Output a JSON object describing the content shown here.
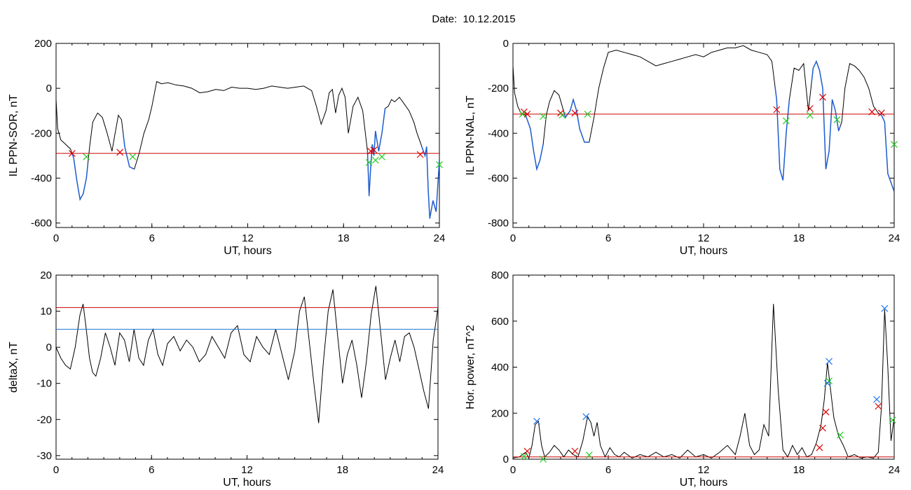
{
  "title": "Date:  10.12.2015",
  "colors": {
    "data": "#000000",
    "threshold_red": "#cc0000",
    "threshold_blue": "#1f77d0",
    "segment_blue": "#1f5fd0",
    "marker_red": "#dd0000",
    "marker_green": "#22cc22",
    "marker_blue": "#2277ee"
  },
  "chart_data": [
    {
      "id": "sor",
      "type": "line",
      "xlabel": "UT, hours",
      "ylabel": "IL PPN-SOR, nT",
      "xlim": [
        0,
        24
      ],
      "ylim": [
        -620,
        200
      ],
      "xticks": [
        0,
        6,
        12,
        18,
        24
      ],
      "xtick_labels": [
        "0",
        "6",
        "12",
        "18",
        "24"
      ],
      "yticks": [
        -600,
        -400,
        -200,
        0,
        200
      ],
      "ytick_labels": [
        "-600",
        "-400",
        "-200",
        "0",
        "200"
      ],
      "threshold_red": -290,
      "series": [
        {
          "x": [
            0,
            0.1,
            0.3,
            0.6,
            0.9,
            1.1,
            1.3,
            1.5,
            1.7,
            1.9,
            2.1,
            2.3,
            2.6,
            2.9,
            3.2,
            3.5,
            3.7,
            3.9,
            4.1,
            4.3,
            4.6,
            4.9,
            5.2,
            5.5,
            5.8,
            6.0,
            6.3,
            6.6,
            7.0,
            7.5,
            8.0,
            8.5,
            9.0,
            9.5,
            10.0,
            10.5,
            11.0,
            11.5,
            12.0,
            12.5,
            13.0,
            13.5,
            14.0,
            14.5,
            15.0,
            15.5,
            16.0,
            16.3,
            16.6,
            16.9,
            17.1,
            17.3,
            17.5,
            17.7,
            17.9,
            18.1,
            18.3,
            18.6,
            18.9,
            19.2,
            19.5,
            19.6,
            19.7,
            19.8,
            19.9,
            20.0,
            20.2,
            20.4,
            20.6,
            20.8,
            21.0,
            21.2,
            21.5,
            21.8,
            22.1,
            22.4,
            22.6,
            22.8,
            23.0,
            23.1,
            23.2,
            23.3,
            23.4,
            23.5,
            23.6,
            23.8,
            24.0
          ],
          "y": [
            -50,
            -180,
            -230,
            -250,
            -270,
            -310,
            -410,
            -495,
            -470,
            -400,
            -260,
            -150,
            -110,
            -130,
            -200,
            -280,
            -200,
            -120,
            -140,
            -260,
            -350,
            -360,
            -290,
            -200,
            -140,
            -80,
            30,
            20,
            25,
            15,
            10,
            0,
            -20,
            -15,
            -5,
            -10,
            5,
            0,
            0,
            -5,
            0,
            10,
            5,
            0,
            5,
            10,
            -10,
            -80,
            -160,
            -100,
            -20,
            -5,
            -110,
            -30,
            0,
            -40,
            -200,
            -80,
            -40,
            -100,
            -280,
            -480,
            -350,
            -250,
            -300,
            -190,
            -280,
            -200,
            -90,
            -80,
            -50,
            -60,
            -40,
            -70,
            -100,
            -150,
            -200,
            -240,
            -280,
            -300,
            -260,
            -450,
            -580,
            -540,
            -500,
            -550,
            -320
          ]
        }
      ],
      "segments_blue": [
        [
          1.0,
          2.0
        ],
        [
          4.2,
          4.9
        ],
        [
          19.5,
          20.6
        ],
        [
          22.9,
          24.0
        ]
      ],
      "markers_red": [
        {
          "x": 1.0,
          "y": -290
        },
        {
          "x": 4.0,
          "y": -285
        },
        {
          "x": 19.7,
          "y": -280
        },
        {
          "x": 19.9,
          "y": -275
        },
        {
          "x": 22.8,
          "y": -295
        }
      ],
      "markers_green": [
        {
          "x": 1.9,
          "y": -305
        },
        {
          "x": 4.8,
          "y": -305
        },
        {
          "x": 19.6,
          "y": -330
        },
        {
          "x": 20.0,
          "y": -320
        },
        {
          "x": 20.4,
          "y": -305
        },
        {
          "x": 24.0,
          "y": -340
        }
      ]
    },
    {
      "id": "nal",
      "type": "line",
      "xlabel": "UT, hours",
      "ylabel": "IL PPN-NAL, nT",
      "xlim": [
        0,
        24
      ],
      "ylim": [
        -820,
        0
      ],
      "xticks": [
        0,
        6,
        12,
        18,
        24
      ],
      "xtick_labels": [
        "0",
        "6",
        "12",
        "18",
        "24"
      ],
      "yticks": [
        -800,
        -600,
        -400,
        -200,
        0
      ],
      "ytick_labels": [
        "-800",
        "-600",
        "-400",
        "-200",
        "0"
      ],
      "threshold_red": -315,
      "series": [
        {
          "x": [
            0,
            0.1,
            0.3,
            0.5,
            0.8,
            1.1,
            1.3,
            1.5,
            1.7,
            1.9,
            2.1,
            2.3,
            2.6,
            2.9,
            3.1,
            3.3,
            3.6,
            3.8,
            4.0,
            4.2,
            4.5,
            4.8,
            5.1,
            5.4,
            5.7,
            6.0,
            6.5,
            7.0,
            7.5,
            8.0,
            8.5,
            9.0,
            9.5,
            10.0,
            10.5,
            11.0,
            11.5,
            12.0,
            12.5,
            13.0,
            13.5,
            14.0,
            14.5,
            15.0,
            15.5,
            16.0,
            16.3,
            16.6,
            16.8,
            17.0,
            17.2,
            17.4,
            17.7,
            18.0,
            18.3,
            18.6,
            18.9,
            19.1,
            19.3,
            19.5,
            19.7,
            19.9,
            20.1,
            20.3,
            20.5,
            20.7,
            20.9,
            21.2,
            21.5,
            21.8,
            22.1,
            22.4,
            22.7,
            23.0,
            23.2,
            23.4,
            23.6,
            23.8,
            24.0
          ],
          "y": [
            -100,
            -220,
            -280,
            -310,
            -320,
            -380,
            -480,
            -560,
            -520,
            -450,
            -320,
            -260,
            -210,
            -230,
            -280,
            -330,
            -300,
            -250,
            -300,
            -380,
            -440,
            -440,
            -330,
            -200,
            -110,
            -40,
            -30,
            -40,
            -50,
            -60,
            -80,
            -100,
            -90,
            -80,
            -70,
            -60,
            -50,
            -60,
            -40,
            -30,
            -20,
            -20,
            -10,
            -30,
            -40,
            -50,
            -80,
            -250,
            -560,
            -610,
            -400,
            -250,
            -110,
            -120,
            -90,
            -300,
            -110,
            -80,
            -120,
            -200,
            -560,
            -480,
            -250,
            -300,
            -390,
            -350,
            -200,
            -90,
            -100,
            -120,
            -150,
            -200,
            -280,
            -310,
            -320,
            -350,
            -580,
            -620,
            -660
          ]
        }
      ],
      "segments_blue": [
        [
          0.8,
          1.9
        ],
        [
          3.2,
          4.8
        ],
        [
          16.5,
          17.4
        ],
        [
          18.8,
          20.6
        ],
        [
          23.1,
          24.0
        ]
      ],
      "markers_red": [
        {
          "x": 0.7,
          "y": -305
        },
        {
          "x": 0.9,
          "y": -315
        },
        {
          "x": 3.0,
          "y": -310
        },
        {
          "x": 3.9,
          "y": -310
        },
        {
          "x": 16.6,
          "y": -295
        },
        {
          "x": 18.7,
          "y": -290
        },
        {
          "x": 19.5,
          "y": -240
        },
        {
          "x": 22.6,
          "y": -305
        },
        {
          "x": 23.2,
          "y": -310
        }
      ],
      "markers_green": [
        {
          "x": 0.6,
          "y": -315
        },
        {
          "x": 1.9,
          "y": -325
        },
        {
          "x": 3.1,
          "y": -320
        },
        {
          "x": 4.7,
          "y": -315
        },
        {
          "x": 17.2,
          "y": -345
        },
        {
          "x": 18.7,
          "y": -320
        },
        {
          "x": 20.4,
          "y": -340
        },
        {
          "x": 24.0,
          "y": -450
        }
      ]
    },
    {
      "id": "deltax",
      "type": "line",
      "xlabel": "UT, hours",
      "ylabel": "deltaX, nT",
      "xlim": [
        0,
        24
      ],
      "ylim": [
        -31,
        20
      ],
      "xticks": [
        0,
        6,
        12,
        18,
        24
      ],
      "xtick_labels": [
        "0",
        "6",
        "12",
        "18",
        "24"
      ],
      "yticks": [
        -30,
        -20,
        -10,
        0,
        10,
        20
      ],
      "ytick_labels": [
        "-30",
        "-20",
        "-10",
        "0",
        "10",
        "20"
      ],
      "threshold_red": 11,
      "threshold_blue": 5,
      "series": [
        {
          "x": [
            0,
            0.3,
            0.6,
            0.9,
            1.2,
            1.5,
            1.7,
            1.9,
            2.1,
            2.3,
            2.5,
            2.8,
            3.1,
            3.4,
            3.7,
            4.0,
            4.3,
            4.6,
            4.9,
            5.2,
            5.5,
            5.8,
            6.1,
            6.4,
            6.7,
            7.0,
            7.4,
            7.8,
            8.2,
            8.6,
            9.0,
            9.4,
            9.8,
            10.2,
            10.6,
            11.0,
            11.4,
            11.8,
            12.2,
            12.6,
            13.0,
            13.4,
            13.8,
            14.2,
            14.6,
            15.0,
            15.3,
            15.6,
            15.9,
            16.2,
            16.5,
            16.8,
            17.1,
            17.4,
            17.7,
            18.0,
            18.3,
            18.6,
            18.9,
            19.2,
            19.5,
            19.8,
            20.1,
            20.4,
            20.7,
            21.0,
            21.3,
            21.6,
            21.9,
            22.2,
            22.5,
            22.8,
            23.1,
            23.4,
            23.7,
            24.0
          ],
          "y": [
            0,
            -3,
            -5,
            -6,
            0,
            9,
            12,
            5,
            -3,
            -7,
            -8,
            -3,
            4,
            0,
            -5,
            4,
            2,
            -4,
            5,
            -3,
            -5,
            2,
            5,
            -2,
            -5,
            1,
            3,
            -1,
            2,
            0,
            -4,
            -2,
            3,
            0,
            -3,
            4,
            6,
            -2,
            -4,
            3,
            0,
            -2,
            5,
            -2,
            -9,
            -1,
            10,
            14,
            2,
            -10,
            -21,
            -4,
            10,
            16,
            3,
            -10,
            -2,
            2,
            -5,
            -14,
            -4,
            9,
            17,
            4,
            -9,
            -3,
            2,
            -4,
            3,
            4,
            0,
            -6,
            -12,
            -17,
            2,
            11
          ]
        }
      ]
    },
    {
      "id": "power",
      "type": "line",
      "xlabel": "UT, hours",
      "ylabel": "Hor. power, nT^2",
      "xlim": [
        0,
        24
      ],
      "ylim": [
        0,
        800
      ],
      "xticks": [
        0,
        6,
        12,
        18,
        24
      ],
      "xtick_labels": [
        "0",
        "6",
        "12",
        "18",
        "24"
      ],
      "yticks": [
        0,
        200,
        400,
        600,
        800
      ],
      "ytick_labels": [
        "0",
        "200",
        "400",
        "600",
        "800"
      ],
      "threshold_red": 10,
      "series": [
        {
          "x": [
            0,
            0.4,
            0.8,
            1.0,
            1.2,
            1.4,
            1.6,
            1.8,
            2.0,
            2.3,
            2.6,
            2.9,
            3.2,
            3.5,
            3.8,
            4.1,
            4.4,
            4.7,
            4.9,
            5.1,
            5.3,
            5.5,
            5.8,
            6.1,
            6.4,
            6.7,
            7.0,
            7.5,
            8.0,
            8.5,
            9.0,
            9.5,
            10.0,
            10.5,
            11.0,
            11.5,
            12.0,
            12.5,
            13.0,
            13.5,
            14.0,
            14.3,
            14.6,
            14.9,
            15.2,
            15.5,
            15.8,
            16.1,
            16.4,
            16.7,
            17.0,
            17.3,
            17.6,
            17.9,
            18.2,
            18.5,
            18.8,
            19.1,
            19.4,
            19.6,
            19.8,
            20.0,
            20.2,
            20.5,
            20.8,
            21.1,
            21.5,
            21.9,
            22.3,
            22.7,
            23.0,
            23.2,
            23.4,
            23.6,
            23.8,
            24.0
          ],
          "y": [
            5,
            10,
            30,
            5,
            60,
            150,
            165,
            60,
            10,
            30,
            60,
            40,
            10,
            40,
            20,
            10,
            80,
            185,
            160,
            100,
            160,
            60,
            10,
            50,
            20,
            10,
            30,
            5,
            20,
            10,
            30,
            10,
            20,
            5,
            40,
            10,
            20,
            5,
            30,
            60,
            20,
            100,
            200,
            60,
            20,
            40,
            150,
            100,
            675,
            300,
            40,
            10,
            60,
            20,
            50,
            10,
            20,
            70,
            150,
            260,
            420,
            300,
            180,
            100,
            60,
            10,
            20,
            5,
            10,
            5,
            30,
            230,
            650,
            400,
            80,
            180
          ]
        }
      ],
      "markers_red": [
        {
          "x": 0.9,
          "y": 35
        },
        {
          "x": 3.9,
          "y": 35
        },
        {
          "x": 19.3,
          "y": 50
        },
        {
          "x": 19.5,
          "y": 135
        },
        {
          "x": 19.7,
          "y": 205
        },
        {
          "x": 23.0,
          "y": 230
        }
      ],
      "markers_green": [
        {
          "x": 0.7,
          "y": 12
        },
        {
          "x": 1.9,
          "y": 0
        },
        {
          "x": 4.8,
          "y": 18
        },
        {
          "x": 19.8,
          "y": 330
        },
        {
          "x": 19.9,
          "y": 340
        },
        {
          "x": 20.6,
          "y": 105
        },
        {
          "x": 23.9,
          "y": 170
        }
      ],
      "markers_blue": [
        {
          "x": 1.5,
          "y": 165
        },
        {
          "x": 4.6,
          "y": 185
        },
        {
          "x": 19.9,
          "y": 425
        },
        {
          "x": 19.8,
          "y": 330
        },
        {
          "x": 22.9,
          "y": 260
        },
        {
          "x": 23.4,
          "y": 655
        }
      ]
    }
  ]
}
